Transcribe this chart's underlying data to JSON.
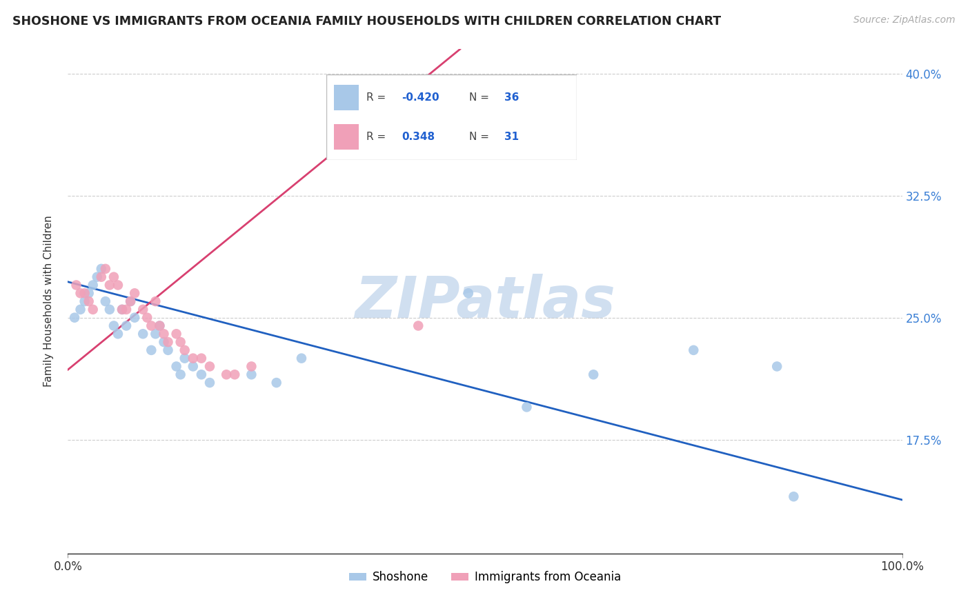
{
  "title": "SHOSHONE VS IMMIGRANTS FROM OCEANIA FAMILY HOUSEHOLDS WITH CHILDREN CORRELATION CHART",
  "source": "Source: ZipAtlas.com",
  "ylabel": "Family Households with Children",
  "xlim": [
    0.0,
    1.0
  ],
  "ylim": [
    0.105,
    0.415
  ],
  "yticks": [
    0.175,
    0.25,
    0.325,
    0.4
  ],
  "ytick_labels": [
    "17.5%",
    "25.0%",
    "32.5%",
    "40.0%"
  ],
  "xticks": [
    0.0,
    1.0
  ],
  "xtick_labels": [
    "0.0%",
    "100.0%"
  ],
  "legend_blue_R": "-0.420",
  "legend_blue_N": "36",
  "legend_pink_R": "0.348",
  "legend_pink_N": "31",
  "blue_scatter_color": "#a8c8e8",
  "pink_scatter_color": "#f0a0b8",
  "blue_line_color": "#2060c0",
  "pink_line_color": "#d84070",
  "watermark_color": "#d0dff0",
  "blue_line_x0": 0.0,
  "blue_line_y0": 0.272,
  "blue_line_x1": 1.0,
  "blue_line_y1": 0.138,
  "pink_line_x0": 0.0,
  "pink_line_y0": 0.218,
  "pink_line_x1": 0.47,
  "pink_line_y1": 0.415,
  "shoshone_x": [
    0.008,
    0.015,
    0.02,
    0.025,
    0.03,
    0.035,
    0.04,
    0.045,
    0.05,
    0.055,
    0.06,
    0.065,
    0.07,
    0.075,
    0.08,
    0.09,
    0.1,
    0.105,
    0.11,
    0.115,
    0.12,
    0.13,
    0.135,
    0.14,
    0.15,
    0.16,
    0.17,
    0.22,
    0.25,
    0.28,
    0.48,
    0.55,
    0.63,
    0.75,
    0.85,
    0.87
  ],
  "shoshone_y": [
    0.25,
    0.255,
    0.26,
    0.265,
    0.27,
    0.275,
    0.28,
    0.26,
    0.255,
    0.245,
    0.24,
    0.255,
    0.245,
    0.26,
    0.25,
    0.24,
    0.23,
    0.24,
    0.245,
    0.235,
    0.23,
    0.22,
    0.215,
    0.225,
    0.22,
    0.215,
    0.21,
    0.215,
    0.21,
    0.225,
    0.265,
    0.195,
    0.215,
    0.23,
    0.22,
    0.14
  ],
  "oceania_x": [
    0.01,
    0.015,
    0.02,
    0.025,
    0.03,
    0.04,
    0.045,
    0.05,
    0.055,
    0.06,
    0.065,
    0.07,
    0.075,
    0.08,
    0.09,
    0.095,
    0.1,
    0.105,
    0.11,
    0.115,
    0.12,
    0.13,
    0.135,
    0.14,
    0.15,
    0.16,
    0.17,
    0.19,
    0.2,
    0.22,
    0.42
  ],
  "oceania_y": [
    0.27,
    0.265,
    0.265,
    0.26,
    0.255,
    0.275,
    0.28,
    0.27,
    0.275,
    0.27,
    0.255,
    0.255,
    0.26,
    0.265,
    0.255,
    0.25,
    0.245,
    0.26,
    0.245,
    0.24,
    0.235,
    0.24,
    0.235,
    0.23,
    0.225,
    0.225,
    0.22,
    0.215,
    0.215,
    0.22,
    0.245
  ]
}
